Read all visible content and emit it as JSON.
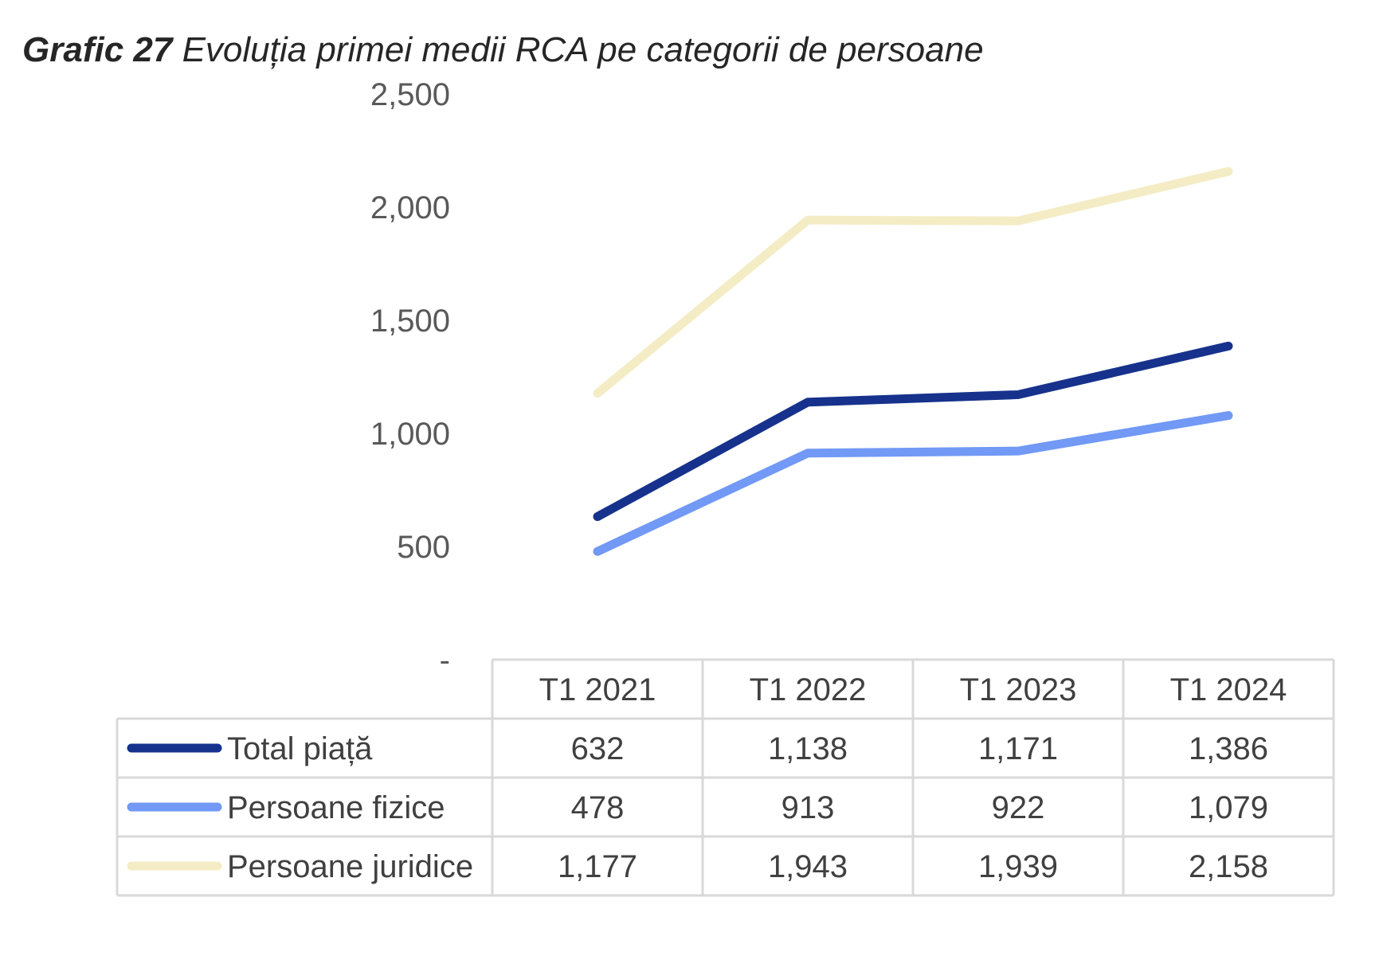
{
  "title": {
    "number": "Grafic 27",
    "text": "Evoluția primei medii RCA pe categorii de persoane"
  },
  "chart_data": {
    "type": "line",
    "categories": [
      "T1 2021",
      "T1 2022",
      "T1 2023",
      "T1 2024"
    ],
    "y_ticks": [
      "-",
      "500",
      "1,000",
      "1,500",
      "2,000",
      "2,500"
    ],
    "ylim": [
      0,
      2500
    ],
    "grid": false,
    "legend": "data-table",
    "series": [
      {
        "name": "Total piață",
        "color": "#16328c",
        "values": [
          632,
          1138,
          1171,
          1386
        ],
        "labels": [
          "632",
          "1,138",
          "1,171",
          "1,386"
        ]
      },
      {
        "name": "Persoane fizice",
        "color": "#7199f5",
        "values": [
          478,
          913,
          922,
          1079
        ],
        "labels": [
          "478",
          "913",
          "922",
          "1,079"
        ]
      },
      {
        "name": "Persoane juridice",
        "color": "#f4ecc4",
        "values": [
          1177,
          1943,
          1939,
          2158
        ],
        "labels": [
          "1,177",
          "1,943",
          "1,939",
          "2,158"
        ]
      }
    ]
  }
}
